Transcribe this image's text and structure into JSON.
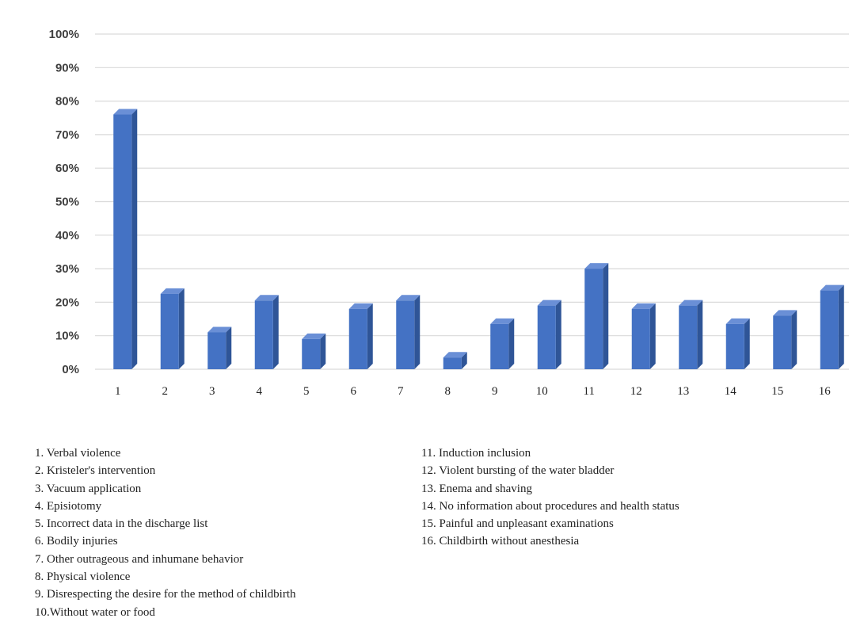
{
  "chart_data": {
    "type": "bar",
    "title": "",
    "xlabel": "",
    "ylabel": "",
    "ylim": [
      0,
      100
    ],
    "y_ticks": [
      "0%",
      "10%",
      "20%",
      "30%",
      "40%",
      "50%",
      "60%",
      "70%",
      "80%",
      "90%",
      "100%"
    ],
    "categories": [
      "1",
      "2",
      "3",
      "4",
      "5",
      "6",
      "7",
      "8",
      "9",
      "10",
      "11",
      "12",
      "13",
      "14",
      "15",
      "16"
    ],
    "values": [
      76,
      22.5,
      11,
      20.5,
      9,
      18,
      20.5,
      3.5,
      13.5,
      19,
      30,
      18,
      19,
      13.5,
      16,
      23.5
    ],
    "grid": true,
    "bar_color": "#4472C4",
    "legend_left": [
      "1. Verbal violence",
      "2. Kristeler's intervention",
      "3. Vacuum application",
      "4. Episiotomy",
      "5. Incorrect data in the discharge list",
      "6. Bodily injuries",
      "7. Other outrageous and inhumane behavior",
      "8. Physical violence",
      "9. Disrespecting the desire for the method of childbirth",
      "10.Without water or food"
    ],
    "legend_right": [
      "11. Induction inclusion",
      "12. Violent bursting of the water bladder",
      "13. Enema and shaving",
      "14. No information about procedures and health status",
      "15. Painful and unpleasant examinations",
      "16. Childbirth without anesthesia"
    ]
  }
}
